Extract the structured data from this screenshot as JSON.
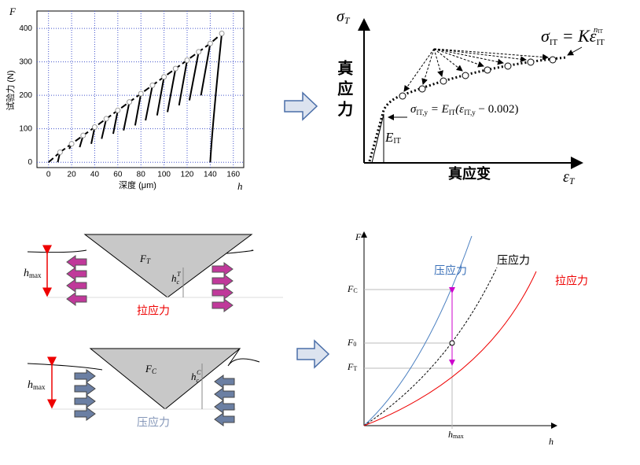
{
  "load_curve": {
    "y_axis": "F",
    "x_axis": "h",
    "y_label": "试验力 (N)",
    "x_label": "深度 (μm)",
    "xlim": [
      -10,
      169
    ],
    "ylim": [
      -16,
      452
    ],
    "xticks": [
      0,
      20,
      40,
      60,
      80,
      100,
      120,
      140,
      160
    ],
    "yticks": [
      0,
      100,
      200,
      300,
      400
    ],
    "peak_h": [
      10,
      20,
      30,
      40,
      50,
      60,
      70,
      80,
      90,
      100,
      110,
      120,
      130,
      140,
      150
    ],
    "peak_F": [
      30,
      55,
      80,
      105,
      130,
      155,
      180,
      205,
      230,
      255,
      280,
      305,
      330,
      355,
      385
    ],
    "unload_h": [
      8,
      18,
      27,
      37,
      46,
      56,
      65,
      75,
      84,
      94,
      103,
      113,
      122,
      132,
      140
    ],
    "unload_F": [
      0,
      40,
      45,
      55,
      70,
      85,
      95,
      110,
      125,
      140,
      150,
      170,
      185,
      200,
      0
    ]
  },
  "flow_curve": {
    "y_axis": {
      "main": "σ",
      "sub": "T"
    },
    "x_axis": {
      "main": "ε",
      "sub": "T"
    },
    "y_label": "真应力",
    "x_label": "真应变",
    "power_law": {
      "lhs": "σ",
      "lhs_sub": "IT",
      "eq": " = Kε",
      "sub": "IT",
      "sup": "n",
      "sup_sub": "IT"
    },
    "yield_eq": {
      "s": "σ",
      "s_sub": "IT,y",
      "eq": " = E",
      "e_sub": "IT",
      "open": "(ε",
      "eps_sub": "IT,y",
      "rest": " − 0.002)"
    },
    "modulus": {
      "main": "E",
      "sub": "IT"
    }
  },
  "tensile_indent": {
    "force": {
      "main": "F",
      "sub": "T"
    },
    "depth": {
      "main": "h",
      "sub": "max"
    },
    "contact": {
      "main": "h",
      "sub": "c",
      "sup": "T"
    },
    "stress": "拉应力"
  },
  "compressive_indent": {
    "force": {
      "main": "F",
      "sub": "C"
    },
    "depth": {
      "main": "h",
      "sub": "max"
    },
    "contact": {
      "main": "h",
      "sub": "c",
      "sup": "C"
    },
    "stress": "压应力"
  },
  "load_comparison": {
    "y_axis": "F",
    "x_axis": "h",
    "fc": {
      "main": "F",
      "sub": "C"
    },
    "f0": {
      "main": "F",
      "sub": "0"
    },
    "ft": {
      "main": "F",
      "sub": "T"
    },
    "hmax": {
      "main": "h",
      "sub": "max"
    },
    "compressive": "压应力",
    "neutral": "压应力",
    "tensile": "拉应力"
  }
}
